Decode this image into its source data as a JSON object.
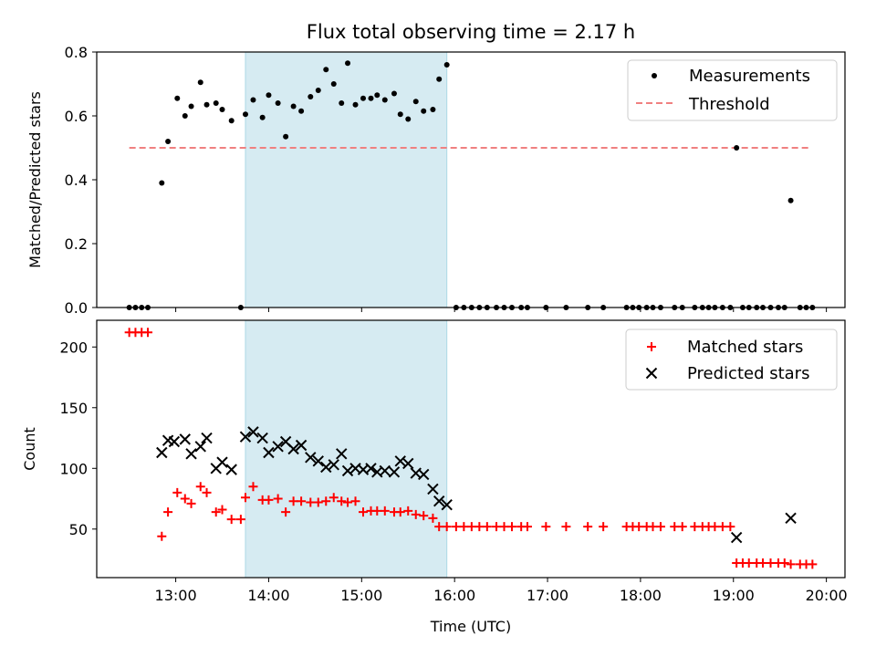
{
  "title": "Flux total observing time = 2.17 h",
  "colors": {
    "threshold": "#f08080",
    "shade": "#add8e6",
    "matched": "#ff0000",
    "predicted": "#000000",
    "measurements": "#000000"
  },
  "chart_data": [
    {
      "type": "scatter",
      "ylabel": "Matched/Predicted stars",
      "ylim": [
        0,
        0.8
      ],
      "yticks": [
        "0.0",
        "0.2",
        "0.4",
        "0.6",
        "0.8"
      ],
      "xlim": [
        "12:09",
        "20:12"
      ],
      "xticks": [
        "13:00",
        "14:00",
        "15:00",
        "16:00",
        "17:00",
        "18:00",
        "19:00",
        "20:00"
      ],
      "shaded_interval": [
        "13:45",
        "15:55"
      ],
      "legend_position": "top-right",
      "legend": [
        "Measurements",
        "Threshold"
      ],
      "threshold": {
        "name": "Threshold",
        "y": 0.5,
        "x": [
          "12:30",
          "19:50"
        ]
      },
      "measurements": {
        "name": "Measurements",
        "time": [
          "12:30",
          "12:34",
          "12:38",
          "12:42",
          "12:51",
          "12:55",
          "13:01",
          "13:06",
          "13:10",
          "13:16",
          "13:20",
          "13:26",
          "13:30",
          "13:36",
          "13:42",
          "13:45",
          "13:50",
          "13:56",
          "14:00",
          "14:06",
          "14:11",
          "14:16",
          "14:21",
          "14:27",
          "14:32",
          "14:37",
          "14:42",
          "14:47",
          "14:51",
          "14:56",
          "15:01",
          "15:06",
          "15:10",
          "15:15",
          "15:21",
          "15:25",
          "15:30",
          "15:35",
          "15:40",
          "15:46",
          "15:50",
          "15:55",
          "16:01",
          "16:06",
          "16:11",
          "16:16",
          "16:21",
          "16:27",
          "16:32",
          "16:37",
          "16:43",
          "16:47",
          "16:59",
          "17:12",
          "17:26",
          "17:36",
          "17:51",
          "17:55",
          "17:59",
          "18:04",
          "18:08",
          "18:13",
          "18:22",
          "18:27",
          "18:35",
          "18:40",
          "18:44",
          "18:48",
          "18:53",
          "18:58",
          "19:02",
          "19:06",
          "19:10",
          "19:15",
          "19:19",
          "19:24",
          "19:29",
          "19:33",
          "19:37",
          "19:43",
          "19:47",
          "19:51"
        ],
        "value": [
          0,
          0,
          0,
          0,
          0.39,
          0.52,
          0.655,
          0.6,
          0.63,
          0.705,
          0.635,
          0.64,
          0.62,
          0.585,
          0,
          0.605,
          0.65,
          0.595,
          0.665,
          0.64,
          0.535,
          0.63,
          0.615,
          0.66,
          0.68,
          0.745,
          0.7,
          0.64,
          0.765,
          0.635,
          0.655,
          0.655,
          0.665,
          0.65,
          0.67,
          0.605,
          0.59,
          0.645,
          0.615,
          0.62,
          0.715,
          0.76,
          0,
          0,
          0,
          0,
          0,
          0,
          0,
          0,
          0,
          0,
          0,
          0,
          0,
          0,
          0,
          0,
          0,
          0,
          0,
          0,
          0,
          0,
          0,
          0,
          0,
          0,
          0,
          0,
          0.5,
          0,
          0,
          0,
          0,
          0,
          0,
          0,
          0.335,
          0,
          0,
          0
        ]
      }
    },
    {
      "type": "scatter",
      "xlabel": "Time (UTC)",
      "ylabel": "Count",
      "ylim": [
        10,
        222
      ],
      "yticks": [
        "50",
        "100",
        "150",
        "200"
      ],
      "xlim": [
        "12:09",
        "20:12"
      ],
      "xticks": [
        "13:00",
        "14:00",
        "15:00",
        "16:00",
        "17:00",
        "18:00",
        "19:00",
        "20:00"
      ],
      "shaded_interval": [
        "13:45",
        "15:55"
      ],
      "legend_position": "top-right",
      "legend": [
        "Matched stars",
        "Predicted stars"
      ],
      "series": [
        {
          "name": "Matched stars",
          "time": [
            "12:30",
            "12:34",
            "12:38",
            "12:42",
            "12:51",
            "12:55",
            "13:01",
            "13:06",
            "13:10",
            "13:16",
            "13:20",
            "13:26",
            "13:30",
            "13:36",
            "13:42",
            "13:45",
            "13:50",
            "13:56",
            "14:00",
            "14:06",
            "14:11",
            "14:16",
            "14:21",
            "14:27",
            "14:32",
            "14:37",
            "14:42",
            "14:47",
            "14:51",
            "14:56",
            "15:01",
            "15:06",
            "15:10",
            "15:15",
            "15:21",
            "15:25",
            "15:30",
            "15:35",
            "15:40",
            "15:46",
            "15:50",
            "15:55",
            "16:01",
            "16:06",
            "16:11",
            "16:16",
            "16:21",
            "16:27",
            "16:32",
            "16:37",
            "16:43",
            "16:47",
            "16:59",
            "17:12",
            "17:26",
            "17:36",
            "17:51",
            "17:55",
            "17:59",
            "18:04",
            "18:08",
            "18:13",
            "18:22",
            "18:27",
            "18:35",
            "18:40",
            "18:44",
            "18:48",
            "18:53",
            "18:58",
            "19:02",
            "19:06",
            "19:10",
            "19:15",
            "19:19",
            "19:24",
            "19:29",
            "19:33",
            "19:37",
            "19:43",
            "19:47",
            "19:51"
          ],
          "value": [
            212,
            212,
            212,
            212,
            44,
            64,
            80,
            75,
            71,
            85,
            80,
            64,
            66,
            58,
            58,
            76,
            85,
            74,
            74,
            75,
            64,
            73,
            73,
            72,
            72,
            73,
            76,
            73,
            72,
            73,
            64,
            65,
            65,
            65,
            64,
            64,
            65,
            62,
            61,
            59,
            52,
            52,
            52,
            52,
            52,
            52,
            52,
            52,
            52,
            52,
            52,
            52,
            52,
            52,
            52,
            52,
            52,
            52,
            52,
            52,
            52,
            52,
            52,
            52,
            52,
            52,
            52,
            52,
            52,
            52,
            22,
            22,
            22,
            22,
            22,
            22,
            22,
            22,
            21,
            21,
            21,
            21
          ]
        },
        {
          "name": "Predicted stars",
          "time": [
            "12:51",
            "12:55",
            "12:59",
            "13:06",
            "13:10",
            "13:16",
            "13:20",
            "13:26",
            "13:30",
            "13:36",
            "13:45",
            "13:50",
            "13:56",
            "14:00",
            "14:06",
            "14:11",
            "14:16",
            "14:21",
            "14:27",
            "14:32",
            "14:37",
            "14:42",
            "14:47",
            "14:51",
            "14:56",
            "15:01",
            "15:06",
            "15:10",
            "15:15",
            "15:21",
            "15:25",
            "15:30",
            "15:35",
            "15:40",
            "15:46",
            "15:50",
            "15:55",
            "19:02",
            "19:37"
          ],
          "value": [
            113,
            123,
            122,
            124,
            112,
            118,
            125,
            100,
            105,
            99,
            126,
            130,
            125,
            113,
            118,
            122,
            116,
            119,
            109,
            106,
            101,
            103,
            112,
            98,
            100,
            99,
            100,
            97,
            98,
            97,
            106,
            104,
            96,
            95,
            83,
            73,
            70,
            43,
            59
          ]
        }
      ]
    }
  ]
}
